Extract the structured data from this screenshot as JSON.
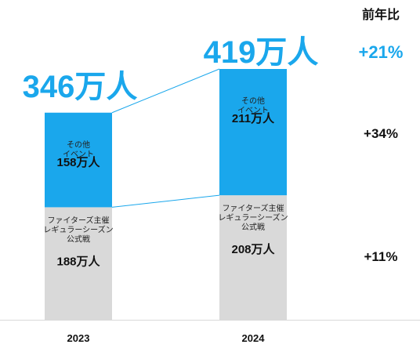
{
  "chart_data": {
    "type": "bar",
    "stacked": true,
    "categories": [
      "2023",
      "2024"
    ],
    "series": [
      {
        "name": "ファイターズ主催\nレギュラーシーズン\n公式戦",
        "values": [
          188,
          208
        ],
        "labels": [
          "188万人",
          "208万人"
        ],
        "color": "#D9D9D9"
      },
      {
        "name": "その他\nイベント",
        "values": [
          158,
          211
        ],
        "labels": [
          "158万人",
          "211万人"
        ],
        "color": "#1AA7EC"
      }
    ],
    "totals": {
      "values": [
        346,
        419
      ],
      "labels": [
        "346万人",
        "419万人"
      ],
      "color": "#1AA7EC"
    },
    "yoy": {
      "header": "前年比",
      "total": "+21%",
      "series": [
        "+11%",
        "+34%"
      ],
      "total_color": "#1AA7EC"
    },
    "connectors": true,
    "axis": {
      "ylim": [
        0,
        419
      ]
    }
  }
}
